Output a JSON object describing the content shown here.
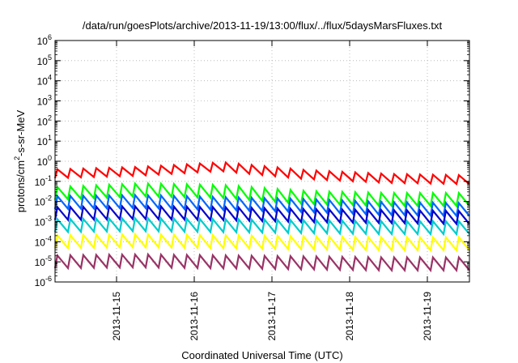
{
  "chart_data": {
    "type": "line",
    "title": "/data/run/goesPlots/archive/2013-11-19/13:00/flux/../flux/5daysMarsFluxes.txt",
    "xlabel": "Coordinated Universal Time (UTC)",
    "ylabel_parts": {
      "a": "protons/cm",
      "sup": "2",
      "b": "-s-sr-MeV"
    },
    "y_scale": "log",
    "ylim_exponents": [
      -6,
      6
    ],
    "y_tick_base": "10",
    "y_tick_exponents": [
      "-6",
      "-5",
      "-4",
      "-3",
      "-2",
      "-1",
      "0",
      "1",
      "2",
      "3",
      "4",
      "5",
      "6"
    ],
    "xlim": [
      "2013-11-14T05:00",
      "2013-11-19T13:00"
    ],
    "x_ticks": [
      "2013-11-15",
      "2013-11-16",
      "2013-11-17",
      "2013-11-18",
      "2013-11-19"
    ],
    "grid": true,
    "teeth_per_day": 6,
    "series": [
      {
        "color": "#ff0000",
        "baseline_log10": [
          -0.62,
          -0.5,
          -0.27,
          -0.66,
          -0.85,
          -0.92
        ]
      },
      {
        "color": "#00ff00",
        "baseline_log10": [
          -1.6,
          -1.42,
          -1.5,
          -1.8,
          -1.9,
          -1.9
        ]
      },
      {
        "color": "#0066ff",
        "baseline_log10": [
          -2.05,
          -2.0,
          -2.1,
          -2.2,
          -2.35,
          -2.4
        ]
      },
      {
        "color": "#0000cc",
        "baseline_log10": [
          -2.6,
          -2.55,
          -2.6,
          -2.7,
          -2.75,
          -2.8
        ]
      },
      {
        "color": "#00cccc",
        "baseline_log10": [
          -3.2,
          -3.15,
          -3.2,
          -3.25,
          -3.3,
          -3.3
        ]
      },
      {
        "color": "#ffff00",
        "baseline_log10": [
          -4.0,
          -3.95,
          -4.0,
          -4.05,
          -4.1,
          -4.1
        ]
      },
      {
        "color": "#993366",
        "baseline_log10": [
          -5.0,
          -4.95,
          -5.0,
          -5.05,
          -5.1,
          -5.1
        ]
      }
    ]
  }
}
